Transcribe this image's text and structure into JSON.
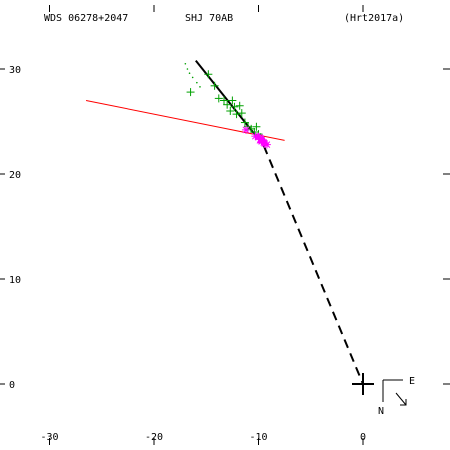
{
  "header": {
    "wds_id": "WDS 06278+2047",
    "discoverer": "SHJ  70AB",
    "reference": "(Hrt2017a)"
  },
  "orientation": {
    "east_label": "E",
    "north_label": "N"
  },
  "colors": {
    "orbit": "#000000",
    "fit_line": "#ff0000",
    "obs_green": "#00a000",
    "obs_magenta": "#ff00ff",
    "axis": "#000000"
  },
  "chart_data": {
    "type": "scatter",
    "title": "",
    "xlabel": "",
    "ylabel": "",
    "xlim": [
      -33,
      8
    ],
    "ylim": [
      -6,
      36
    ],
    "x_ticks": [
      {
        "value": -30,
        "label": "-30"
      },
      {
        "value": -20,
        "label": "-20"
      },
      {
        "value": -10,
        "label": "-10"
      },
      {
        "value": 0,
        "label": "0"
      }
    ],
    "y_ticks": [
      {
        "value": 0,
        "label": "0"
      },
      {
        "value": 10,
        "label": "10"
      },
      {
        "value": 20,
        "label": "20"
      },
      {
        "value": 30,
        "label": "30"
      }
    ],
    "primary_marker": [
      0,
      0
    ],
    "orbit_solid": [
      [
        -16,
        30.8
      ],
      [
        -9.5,
        22.7
      ]
    ],
    "orbit_dashed": [
      [
        -9.5,
        22.7
      ],
      [
        0,
        0
      ]
    ],
    "fit_line": [
      [
        -26.5,
        27
      ],
      [
        -7.5,
        23.2
      ]
    ],
    "series": [
      {
        "marker": "plus",
        "color": "green",
        "points": [
          [
            -16.5,
            27.8
          ],
          [
            -14.8,
            29.5
          ],
          [
            -14.2,
            28.4
          ],
          [
            -13.8,
            27.2
          ],
          [
            -13.3,
            27.0
          ],
          [
            -13.0,
            26.6
          ],
          [
            -12.7,
            26.0
          ],
          [
            -12.5,
            27.0
          ],
          [
            -12.3,
            26.4
          ],
          [
            -12.1,
            25.7
          ],
          [
            -11.8,
            26.5
          ],
          [
            -11.6,
            25.8
          ],
          [
            -11.3,
            24.9
          ],
          [
            -11.0,
            24.5
          ],
          [
            -10.7,
            24.3
          ],
          [
            -10.4,
            24.0
          ],
          [
            -10.2,
            24.5
          ],
          [
            -10.0,
            23.8
          ],
          [
            -9.8,
            23.5
          ],
          [
            -9.6,
            23.2
          ]
        ]
      },
      {
        "marker": "dot",
        "color": "green",
        "points": [
          [
            -17.0,
            30.5
          ],
          [
            -16.8,
            30.0
          ],
          [
            -16.6,
            29.6
          ],
          [
            -16.3,
            29.2
          ],
          [
            -15.9,
            28.7
          ],
          [
            -15.6,
            28.3
          ]
        ]
      },
      {
        "marker": "asterisk",
        "color": "magenta",
        "points": [
          [
            -11.2,
            24.2
          ],
          [
            -10.3,
            23.6
          ],
          [
            -10.0,
            23.5
          ],
          [
            -9.8,
            23.3
          ],
          [
            -9.7,
            23.1
          ],
          [
            -9.5,
            23.0
          ],
          [
            -9.4,
            22.9
          ],
          [
            -9.2,
            22.8
          ]
        ]
      },
      {
        "marker": "triangle",
        "color": "magenta",
        "points": [
          [
            -10.0,
            23.6
          ],
          [
            -9.8,
            23.2
          ],
          [
            -9.6,
            23.4
          ],
          [
            -9.4,
            23.0
          ]
        ]
      }
    ]
  }
}
